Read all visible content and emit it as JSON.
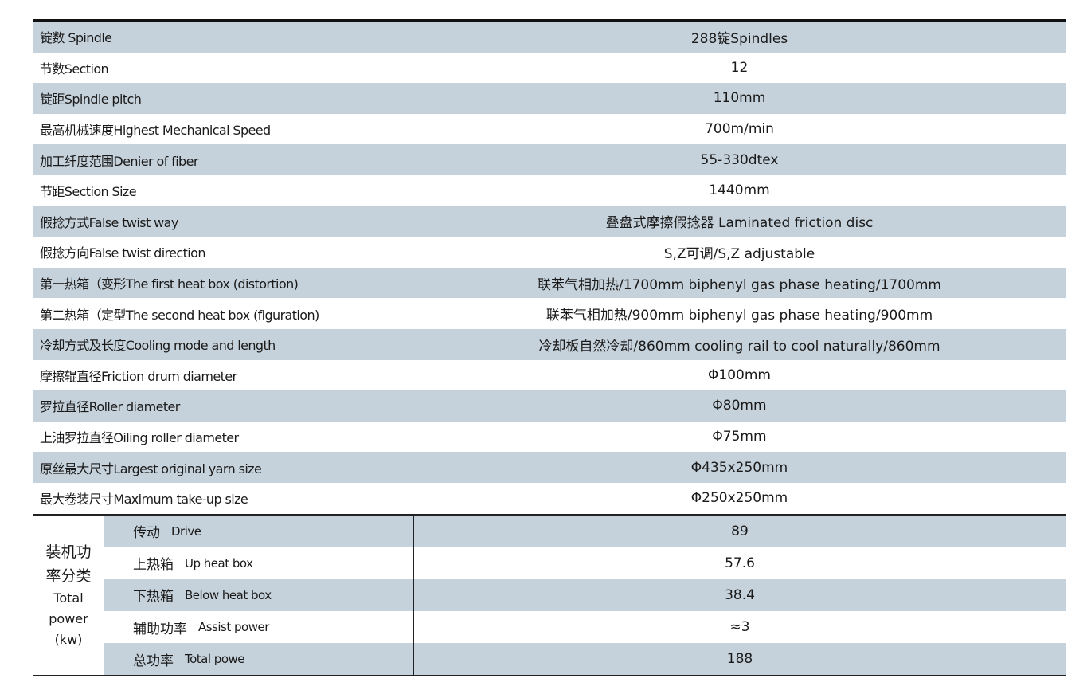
{
  "rows": [
    {
      "label": "锭数 Spindle",
      "value": "288锭Spindles"
    },
    {
      "label": "节数Section",
      "value": "12"
    },
    {
      "label": "锭距Spindle pitch",
      "value": "110mm"
    },
    {
      "label": "最高机械速度Highest Mechanical Speed",
      "value": "700m/min"
    },
    {
      "label": "加工纤度范围Denier of fiber",
      "value": "55-330dtex"
    },
    {
      "label": "节距Section Size",
      "value": "1440mm"
    },
    {
      "label": "假捻方式False twist way",
      "value": "叠盘式摩擦假捻器  Laminated friction disc"
    },
    {
      "label": "假捻方向False twist direction",
      "value": "S,Z可调/S,Z adjustable"
    },
    {
      "label": "第一热箱（变形The first heat box (distortion)",
      "value": "联苯气相加热/1700mm biphenyl gas phase heating/1700mm"
    },
    {
      "label": "第二热箱（定型The second heat box (figuration)",
      "value": "联苯气相加热/900mm biphenyl gas phase heating/900mm"
    },
    {
      "label": "冷却方式及长度Cooling mode and length",
      "value": "冷却板自然冷却/860mm cooling rail to cool naturally/860mm"
    },
    {
      "label": "摩擦辊直径Friction drum diameter",
      "value": "Φ100mm"
    },
    {
      "label": "罗拉直径Roller diameter",
      "value": "Φ80mm"
    },
    {
      "label": "上油罗拉直径Oiling roller diameter",
      "value": "Φ75mm"
    },
    {
      "label": "原丝最大尺寸Largest original yarn size",
      "value": "Φ435x250mm"
    },
    {
      "label": "最大卷装尺寸Maximum take-up size",
      "value": "Φ250x250mm"
    }
  ],
  "power": {
    "group_label_cn1": "装机功",
    "group_label_cn2": "率分类",
    "group_label_en1": "Total",
    "group_label_en2": "power",
    "group_label_en3": "(kw)",
    "rows": [
      {
        "cn": "传动",
        "en": "Drive",
        "value": "89"
      },
      {
        "cn": "上热箱",
        "en": "Up heat box",
        "value": "57.6"
      },
      {
        "cn": "下热箱",
        "en": "Below heat box",
        "value": "38.4"
      },
      {
        "cn": "辅助功率",
        "en": "Assist power",
        "value": "≈3"
      },
      {
        "cn": "总功率",
        "en": "Total powe",
        "value": "188"
      }
    ]
  },
  "colors": {
    "shade": "#c6d2db"
  }
}
